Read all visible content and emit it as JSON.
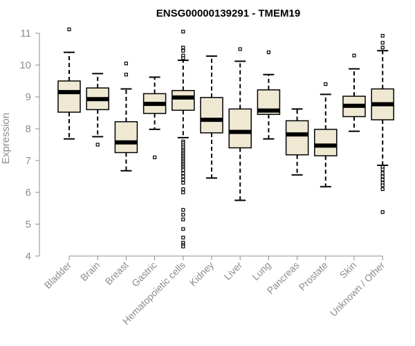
{
  "chart_data": {
    "type": "boxplot",
    "title": "ENSG00000139291 - TMEM19",
    "xlabel": "",
    "ylabel": "Expression",
    "ylim": [
      4,
      11
    ],
    "yticks": [
      4,
      5,
      6,
      7,
      8,
      9,
      10,
      11
    ],
    "grid": false,
    "colors": {
      "box_fill": "#efe8d2",
      "box_stroke": "#000000",
      "median": "#000000",
      "axis": "#8c8c8c"
    },
    "categories": [
      "Bladder",
      "Brain",
      "Breast",
      "Gastric",
      "Hematopoietic cells",
      "Kidney",
      "Liver",
      "Lung",
      "Pancreas",
      "Prostate",
      "Skin",
      "Unknown / Other"
    ],
    "boxes": [
      {
        "category": "Bladder",
        "whisker_low": 7.68,
        "q1": 8.52,
        "median": 9.15,
        "q3": 9.5,
        "whisker_high": 10.4,
        "outliers": [
          11.12
        ]
      },
      {
        "category": "Brain",
        "whisker_low": 7.75,
        "q1": 8.6,
        "median": 8.93,
        "q3": 9.28,
        "whisker_high": 9.73,
        "outliers": [
          7.5
        ]
      },
      {
        "category": "Breast",
        "whisker_low": 6.68,
        "q1": 7.25,
        "median": 7.57,
        "q3": 8.22,
        "whisker_high": 9.25,
        "outliers": [
          9.7,
          10.05
        ]
      },
      {
        "category": "Gastric",
        "whisker_low": 7.98,
        "q1": 8.48,
        "median": 8.78,
        "q3": 9.1,
        "whisker_high": 9.62,
        "outliers": [
          7.1
        ]
      },
      {
        "category": "Hematopoietic cells",
        "whisker_low": 7.72,
        "q1": 8.58,
        "median": 8.98,
        "q3": 9.2,
        "whisker_high": 10.15,
        "outliers": [
          11.05,
          10.55,
          10.45,
          10.3,
          10.22,
          7.6,
          7.55,
          7.48,
          7.42,
          7.35,
          7.3,
          7.25,
          7.2,
          7.15,
          7.1,
          7.05,
          7.0,
          6.95,
          6.9,
          6.85,
          6.8,
          6.75,
          6.7,
          6.6,
          6.5,
          6.4,
          6.3,
          6.1,
          6.0,
          5.45,
          5.3,
          5.15,
          4.85,
          4.58,
          4.42,
          4.35,
          4.3
        ]
      },
      {
        "category": "Kidney",
        "whisker_low": 6.45,
        "q1": 7.87,
        "median": 8.28,
        "q3": 8.98,
        "whisker_high": 10.28,
        "outliers": []
      },
      {
        "category": "Liver",
        "whisker_low": 5.75,
        "q1": 7.4,
        "median": 7.9,
        "q3": 8.62,
        "whisker_high": 10.12,
        "outliers": [
          10.5
        ]
      },
      {
        "category": "Lung",
        "whisker_low": 7.68,
        "q1": 8.45,
        "median": 8.57,
        "q3": 9.22,
        "whisker_high": 9.7,
        "outliers": [
          10.4
        ]
      },
      {
        "category": "Pancreas",
        "whisker_low": 6.55,
        "q1": 7.18,
        "median": 7.82,
        "q3": 8.25,
        "whisker_high": 8.62,
        "outliers": []
      },
      {
        "category": "Prostate",
        "whisker_low": 6.18,
        "q1": 7.15,
        "median": 7.47,
        "q3": 7.98,
        "whisker_high": 9.08,
        "outliers": [
          9.4
        ]
      },
      {
        "category": "Skin",
        "whisker_low": 7.92,
        "q1": 8.38,
        "median": 8.72,
        "q3": 9.02,
        "whisker_high": 9.88,
        "outliers": [
          10.3
        ]
      },
      {
        "category": "Unknown / Other",
        "whisker_low": 6.85,
        "q1": 8.28,
        "median": 8.77,
        "q3": 9.25,
        "whisker_high": 10.45,
        "outliers": [
          10.92,
          10.7,
          10.55,
          6.8,
          6.72,
          6.6,
          6.5,
          6.4,
          6.3,
          6.22,
          6.1,
          5.38
        ]
      }
    ]
  }
}
